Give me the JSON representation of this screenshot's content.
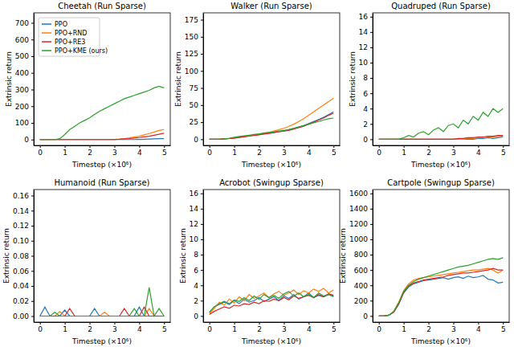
{
  "chart_data": [
    {
      "type": "line",
      "title": "Cheetah (Run Sparse)",
      "x_label": "Timestep (×10⁶)",
      "y_label": "Extrinsic return",
      "legend": "upper left",
      "x": [
        0,
        0.2,
        0.4,
        0.6,
        0.8,
        1.0,
        1.2,
        1.4,
        1.6,
        1.8,
        2.0,
        2.2,
        2.4,
        2.6,
        2.8,
        3.0,
        3.2,
        3.4,
        3.6,
        3.8,
        4.0,
        4.2,
        4.4,
        4.6,
        4.8,
        5.0
      ],
      "xlim": [
        -0.25,
        5.25
      ],
      "xticks": [
        0,
        1,
        2,
        3,
        4,
        5
      ],
      "ylim": [
        -35,
        760
      ],
      "yticks": [
        0,
        100,
        200,
        300,
        400,
        500,
        600,
        700
      ],
      "series": [
        {
          "name": "PPO",
          "color": "#1f77b4",
          "values": [
            0,
            0,
            0,
            0,
            0,
            0,
            0,
            0,
            0,
            0,
            0,
            0,
            0,
            0,
            0,
            0,
            0,
            0,
            0,
            0,
            1,
            2,
            3,
            4,
            5,
            5
          ]
        },
        {
          "name": "PPO+RND",
          "color": "#ff7f0e",
          "values": [
            0,
            0,
            0,
            0,
            0,
            0,
            0,
            0,
            0,
            0,
            0,
            0,
            0,
            0,
            0,
            1,
            3,
            6,
            10,
            15,
            20,
            28,
            36,
            45,
            55,
            60
          ]
        },
        {
          "name": "PPO+RE3",
          "color": "#d62728",
          "values": [
            0,
            0,
            0,
            0,
            0,
            0,
            0,
            0,
            0,
            0,
            0,
            0,
            0,
            0,
            0,
            1,
            2,
            4,
            6,
            9,
            12,
            16,
            20,
            26,
            32,
            38
          ]
        },
        {
          "name": "PPO+KME (ours)",
          "color": "#2ca02c",
          "values": [
            0,
            0,
            0,
            0,
            5,
            30,
            60,
            80,
            100,
            115,
            130,
            150,
            170,
            185,
            200,
            215,
            230,
            245,
            255,
            265,
            275,
            285,
            295,
            310,
            320,
            310
          ]
        }
      ]
    },
    {
      "type": "line",
      "title": "Walker (Run Sparse)",
      "x_label": "Timestep (×10⁶)",
      "y_label": "Extrinsic return",
      "x": [
        0,
        0.2,
        0.4,
        0.6,
        0.8,
        1.0,
        1.2,
        1.4,
        1.6,
        1.8,
        2.0,
        2.2,
        2.4,
        2.6,
        2.8,
        3.0,
        3.2,
        3.4,
        3.6,
        3.8,
        4.0,
        4.2,
        4.4,
        4.6,
        4.8,
        5.0
      ],
      "xlim": [
        -0.25,
        5.25
      ],
      "xticks": [
        0,
        1,
        2,
        3,
        4,
        5
      ],
      "ylim": [
        -9,
        185
      ],
      "yticks": [
        0,
        25,
        50,
        75,
        100,
        125,
        150,
        175
      ],
      "series": [
        {
          "color": "#1f77b4",
          "values": [
            0,
            0,
            0,
            0.5,
            1,
            2,
            3,
            4,
            5,
            6,
            7,
            8,
            9,
            10,
            11,
            12,
            14,
            16,
            18,
            20,
            23,
            26,
            29,
            32,
            36,
            40
          ]
        },
        {
          "color": "#ff7f0e",
          "values": [
            0,
            0,
            0,
            0.5,
            1,
            2,
            3,
            4,
            5,
            6,
            7,
            9,
            10,
            12,
            14,
            16,
            19,
            22,
            26,
            30,
            35,
            40,
            45,
            50,
            55,
            60
          ]
        },
        {
          "color": "#d62728",
          "values": [
            0,
            0,
            0,
            0.5,
            1,
            1.5,
            2.5,
            3.5,
            4.5,
            5.5,
            6.5,
            7.5,
            8.5,
            9.5,
            11,
            12,
            13,
            15,
            17,
            19,
            22,
            25,
            28,
            31,
            35,
            38
          ]
        },
        {
          "color": "#2ca02c",
          "values": [
            0,
            0,
            0,
            0.5,
            1.5,
            3,
            4,
            5,
            6,
            7,
            8,
            9,
            10,
            11,
            12,
            13,
            14,
            16,
            18,
            20,
            22,
            24,
            26,
            28,
            30,
            31
          ]
        }
      ]
    },
    {
      "type": "line",
      "title": "Quadruped (Run Sparse)",
      "x_label": "Timestep (×10⁶)",
      "y_label": "Extrinsic return",
      "x": [
        0,
        0.2,
        0.4,
        0.6,
        0.8,
        1.0,
        1.2,
        1.4,
        1.6,
        1.8,
        2.0,
        2.2,
        2.4,
        2.6,
        2.8,
        3.0,
        3.2,
        3.4,
        3.6,
        3.8,
        4.0,
        4.2,
        4.4,
        4.6,
        4.8,
        5.0
      ],
      "xlim": [
        -0.25,
        5.25
      ],
      "xticks": [
        0,
        1,
        2,
        3,
        4,
        5
      ],
      "ylim": [
        -0.8,
        16.5
      ],
      "yticks": [
        0,
        2,
        4,
        6,
        8,
        10,
        12,
        14,
        16
      ],
      "series": [
        {
          "color": "#1f77b4",
          "values": [
            0,
            0,
            0,
            0,
            0,
            0,
            0,
            0,
            0,
            0,
            0,
            0,
            0,
            0,
            0,
            0,
            0,
            0,
            0,
            0,
            0.1,
            0.1,
            0.2,
            0.1,
            0.2,
            0.3
          ]
        },
        {
          "color": "#ff7f0e",
          "values": [
            0,
            0,
            0,
            0,
            0,
            0,
            0,
            0,
            0,
            0,
            0,
            0,
            0,
            0,
            0,
            0,
            0,
            0,
            0.1,
            0.1,
            0.2,
            0.2,
            0.3,
            0.3,
            0.4,
            0.4
          ]
        },
        {
          "color": "#d62728",
          "values": [
            0,
            0,
            0,
            0,
            0,
            0,
            0,
            0,
            0,
            0,
            0,
            0,
            0,
            0,
            0,
            0,
            0.1,
            0.1,
            0.2,
            0.2,
            0.3,
            0.3,
            0.4,
            0.4,
            0.5,
            0.5
          ]
        },
        {
          "color": "#2ca02c",
          "values": [
            0,
            0,
            0,
            0,
            0,
            0.2,
            0.5,
            0.3,
            0.8,
            1.0,
            0.6,
            1.2,
            1.5,
            1.0,
            1.8,
            2.0,
            1.5,
            2.5,
            2.0,
            3.0,
            2.5,
            3.5,
            3.0,
            4.0,
            3.5,
            4.0
          ]
        }
      ]
    },
    {
      "type": "line",
      "title": "Humanoid (Run Sparse)",
      "x_label": "Timestep (×10⁶)",
      "y_label": "Extrinsic return",
      "x": [
        0,
        0.2,
        0.4,
        0.6,
        0.8,
        1.0,
        1.2,
        1.4,
        1.6,
        1.8,
        2.0,
        2.2,
        2.4,
        2.6,
        2.8,
        3.0,
        3.2,
        3.4,
        3.6,
        3.8,
        4.0,
        4.2,
        4.4,
        4.6,
        4.8,
        5.0
      ],
      "xlim": [
        -0.25,
        5.25
      ],
      "xticks": [
        0,
        1,
        2,
        3,
        4,
        5
      ],
      "ylim": [
        -0.008,
        0.168
      ],
      "yticks": [
        {
          "value": 0,
          "label": "0.00"
        },
        {
          "value": 0.02,
          "label": "0.02"
        },
        {
          "value": 0.04,
          "label": "0.04"
        },
        {
          "value": 0.06,
          "label": "0.06"
        },
        {
          "value": 0.08,
          "label": "0.08"
        },
        {
          "value": 0.1,
          "label": "0.10"
        },
        {
          "value": 0.12,
          "label": "0.12"
        },
        {
          "value": 0.14,
          "label": "0.14"
        },
        {
          "value": 0.16,
          "label": "0.16"
        }
      ],
      "series": [
        {
          "color": "#1f77b4",
          "values": [
            0,
            0.012,
            0,
            0,
            0,
            0.008,
            0,
            0,
            0,
            0,
            0,
            0.01,
            0,
            0,
            0,
            0,
            0,
            0,
            0,
            0,
            0.012,
            0,
            0,
            0,
            0,
            0
          ]
        },
        {
          "color": "#ff7f0e",
          "values": [
            0,
            0,
            0,
            0,
            0.006,
            0,
            0,
            0,
            0,
            0,
            0,
            0,
            0,
            0.005,
            0,
            0,
            0,
            0,
            0,
            0,
            0,
            0,
            0.01,
            0,
            0,
            0
          ]
        },
        {
          "color": "#d62728",
          "values": [
            0,
            0,
            0,
            0,
            0,
            0,
            0.01,
            0,
            0,
            0,
            0,
            0,
            0,
            0,
            0,
            0,
            0,
            0.01,
            0,
            0,
            0,
            0.012,
            0,
            0,
            0,
            0
          ]
        },
        {
          "color": "#2ca02c",
          "values": [
            0,
            0,
            0,
            0.005,
            0,
            0,
            0,
            0,
            0,
            0,
            0,
            0,
            0,
            0,
            0,
            0,
            0,
            0,
            0,
            0.01,
            0,
            0,
            0.038,
            0,
            0.01,
            0
          ]
        }
      ]
    },
    {
      "type": "line",
      "title": "Acrobot (Swingup Sparse)",
      "x_label": "Timestep (×10⁶)",
      "y_label": "Extrinsic return",
      "x": [
        0,
        0.2,
        0.4,
        0.6,
        0.8,
        1.0,
        1.2,
        1.4,
        1.6,
        1.8,
        2.0,
        2.2,
        2.4,
        2.6,
        2.8,
        3.0,
        3.2,
        3.4,
        3.6,
        3.8,
        4.0,
        4.2,
        4.4,
        4.6,
        4.8,
        5.0
      ],
      "xlim": [
        -0.25,
        5.25
      ],
      "xticks": [
        0,
        1,
        2,
        3,
        4,
        5
      ],
      "ylim": [
        -0.8,
        16.5
      ],
      "yticks": [
        0,
        2,
        4,
        6,
        8,
        10,
        12,
        14,
        16
      ],
      "series": [
        {
          "color": "#1f77b4",
          "values": [
            0.5,
            1.2,
            1.5,
            1.8,
            1.5,
            2.0,
            1.6,
            2.2,
            1.8,
            2.0,
            2.4,
            1.9,
            2.2,
            2.5,
            2.0,
            2.6,
            2.3,
            2.8,
            2.2,
            2.5,
            3.0,
            2.4,
            2.7,
            2.5,
            2.8,
            2.6
          ]
        },
        {
          "color": "#ff7f0e",
          "values": [
            0.3,
            1.0,
            1.8,
            1.4,
            2.2,
            1.7,
            2.5,
            2.0,
            2.8,
            2.3,
            2.6,
            3.0,
            2.4,
            2.9,
            3.2,
            2.7,
            3.0,
            3.4,
            2.8,
            3.3,
            3.0,
            3.5,
            3.2,
            3.6,
            3.0,
            3.4
          ]
        },
        {
          "color": "#d62728",
          "values": [
            0.2,
            0.6,
            0.9,
            1.2,
            1.0,
            1.4,
            1.3,
            1.6,
            1.5,
            1.8,
            1.6,
            2.0,
            1.9,
            2.2,
            2.0,
            2.4,
            2.1,
            2.6,
            2.3,
            2.5,
            2.7,
            2.4,
            2.8,
            2.5,
            2.9,
            2.7
          ]
        },
        {
          "color": "#2ca02c",
          "values": [
            0.5,
            1.2,
            1.6,
            1.9,
            1.6,
            2.1,
            1.9,
            2.4,
            2.0,
            2.6,
            2.2,
            2.8,
            2.4,
            2.7,
            2.3,
            2.9,
            3.2,
            2.6,
            3.0,
            2.5,
            2.8,
            2.4,
            3.0,
            2.6,
            2.8,
            2.5
          ]
        }
      ]
    },
    {
      "type": "line",
      "title": "Cartpole (Swingup Sparse)",
      "x_label": "Timestep (×10⁶)",
      "y_label": "Extrinsic return",
      "x": [
        0,
        0.2,
        0.4,
        0.6,
        0.8,
        1.0,
        1.2,
        1.4,
        1.6,
        1.8,
        2.0,
        2.2,
        2.4,
        2.6,
        2.8,
        3.0,
        3.2,
        3.4,
        3.6,
        3.8,
        4.0,
        4.2,
        4.4,
        4.6,
        4.8,
        5.0
      ],
      "xlim": [
        -0.25,
        5.25
      ],
      "xticks": [
        0,
        1,
        2,
        3,
        4,
        5
      ],
      "ylim": [
        -80,
        1650
      ],
      "yticks": [
        0,
        200,
        400,
        600,
        800,
        1000,
        1200,
        1400,
        1600
      ],
      "series": [
        {
          "color": "#1f77b4",
          "values": [
            0,
            0,
            10,
            50,
            150,
            300,
            380,
            420,
            440,
            460,
            470,
            480,
            490,
            500,
            480,
            500,
            510,
            490,
            520,
            500,
            510,
            530,
            480,
            470,
            430,
            440
          ]
        },
        {
          "color": "#ff7f0e",
          "values": [
            0,
            0,
            10,
            60,
            180,
            330,
            420,
            470,
            490,
            500,
            510,
            520,
            530,
            540,
            550,
            560,
            570,
            580,
            590,
            600,
            600,
            610,
            620,
            600,
            560,
            600
          ]
        },
        {
          "color": "#d62728",
          "values": [
            0,
            0,
            10,
            50,
            160,
            310,
            390,
            430,
            450,
            470,
            480,
            490,
            500,
            510,
            530,
            540,
            550,
            560,
            560,
            570,
            580,
            590,
            600,
            620,
            600,
            600
          ]
        },
        {
          "color": "#2ca02c",
          "values": [
            0,
            0,
            10,
            60,
            170,
            320,
            400,
            450,
            480,
            500,
            520,
            540,
            560,
            580,
            600,
            620,
            640,
            650,
            660,
            680,
            700,
            720,
            740,
            750,
            740,
            760
          ]
        }
      ]
    }
  ]
}
